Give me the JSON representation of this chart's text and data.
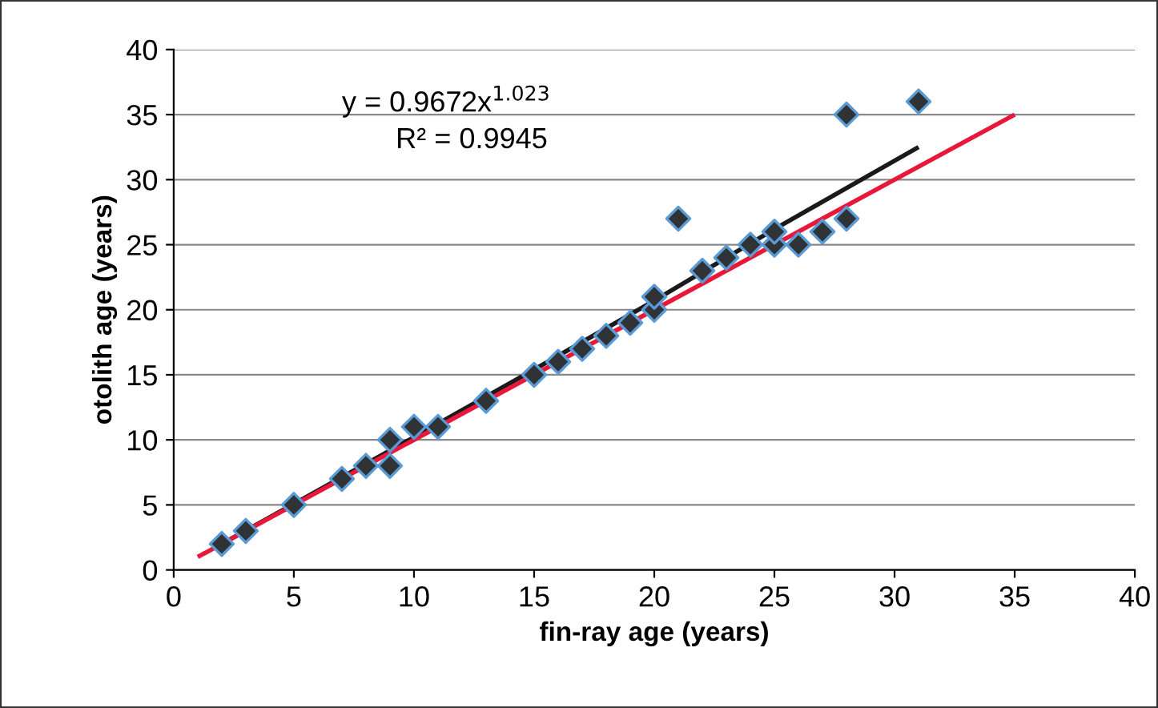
{
  "chart_data": {
    "type": "scatter",
    "xlabel": "fin-ray age (years)",
    "ylabel": "otolith age (years)",
    "annotations": [
      "y = 0.9672x$^{1.023}$",
      "R² = 0.9945"
    ],
    "xlim": [
      0,
      40
    ],
    "ylim": [
      0,
      40
    ],
    "xticks": [
      0,
      5,
      10,
      15,
      20,
      25,
      30,
      35,
      40
    ],
    "yticks": [
      0,
      5,
      10,
      15,
      20,
      25,
      30,
      35,
      40
    ],
    "grid": "y",
    "series": [
      {
        "color": "#2f3336",
        "marker": "diamond",
        "x": [
          2,
          3,
          5,
          7,
          8,
          9,
          9,
          10,
          11,
          13,
          15,
          16,
          17,
          18,
          19,
          20,
          20,
          21,
          22,
          23,
          24,
          25,
          25,
          26,
          27,
          28,
          28,
          31
        ],
        "values": [
          2,
          3,
          5,
          7,
          8,
          8,
          10,
          11,
          11,
          13,
          15,
          16,
          17,
          18,
          19,
          20,
          21,
          27,
          23,
          24,
          25,
          25,
          26,
          25,
          26,
          27,
          35,
          36
        ]
      },
      {
        "type": "line",
        "color": "#1a1a1a",
        "marker": "none",
        "line_style": "solid",
        "x": [
          2,
          10,
          15,
          20,
          25,
          31
        ],
        "values": [
          2,
          10.2,
          15.4,
          20.7,
          26.2,
          32.5
        ]
      },
      {
        "type": "line",
        "color": "#e8183a",
        "marker": "none",
        "line_style": "solid",
        "x": [
          1,
          35
        ],
        "values": [
          1,
          35
        ]
      }
    ]
  }
}
